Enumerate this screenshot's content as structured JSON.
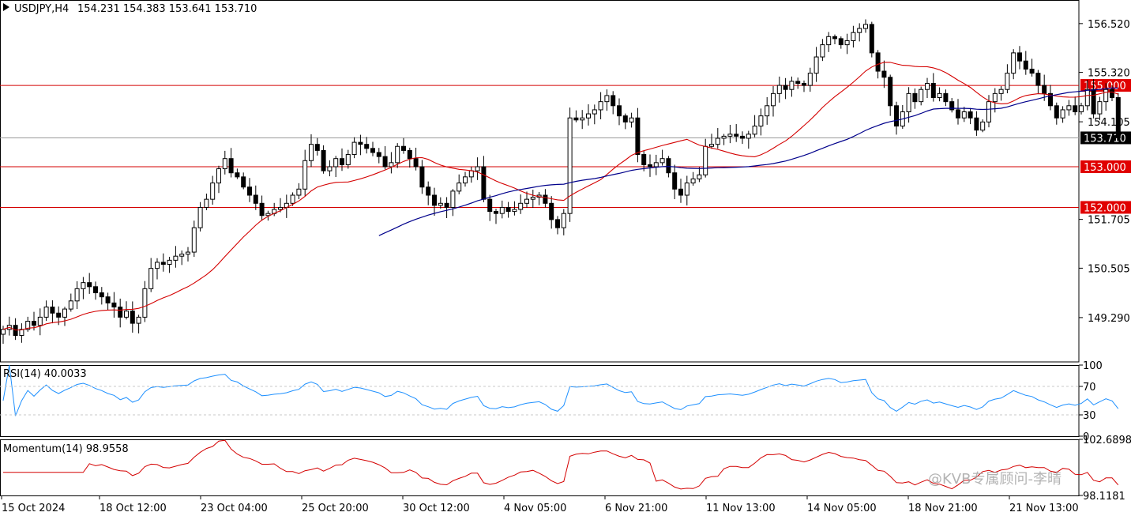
{
  "window": {
    "symbol_label": "USDJPY,H4",
    "ohlc_label": "154.231 154.383 153.641 153.710"
  },
  "colors": {
    "background": "#ffffff",
    "axis": "#000000",
    "grid": "#c8c8c8",
    "level_line": "#d40000",
    "ma_fast": "#d40000",
    "ma_slow": "#00008b",
    "rsi_line": "#1e90ff",
    "momentum_line": "#d40000",
    "current_price_line": "#9a9a9a",
    "price_tag_bg": "#000000",
    "level_tag_bg": "#e00000",
    "tag_text": "#ffffff"
  },
  "chart_data": [
    {
      "type": "candlestick",
      "title": "USDJPY,H4",
      "ylim": [
        148.2,
        157.1
      ],
      "ytick_labels": [
        "156.520",
        "155.320",
        "154.105",
        "151.705",
        "150.505",
        "149.290"
      ],
      "ytick_values": [
        156.52,
        155.32,
        154.105,
        151.705,
        150.505,
        149.29
      ],
      "xtick_labels": [
        "15 Oct 2024",
        "18 Oct 12:00",
        "23 Oct 04:00",
        "25 Oct 20:00",
        "30 Oct 12:00",
        "4 Nov 05:00",
        "6 Nov 21:00",
        "11 Nov 13:00",
        "14 Nov 05:00",
        "18 Nov 21:00",
        "21 Nov 13:00"
      ],
      "last_price": 153.71,
      "last_price_label": "153.710",
      "horizontal_levels": [
        {
          "value": 155.0,
          "label": "155.000"
        },
        {
          "value": 153.0,
          "label": "153.000"
        },
        {
          "value": 152.0,
          "label": "152.000"
        }
      ],
      "candles": [
        149.0,
        149.1,
        148.85,
        149.0,
        149.2,
        149.1,
        149.3,
        149.55,
        149.4,
        149.3,
        149.5,
        149.7,
        150.0,
        150.15,
        150.05,
        149.9,
        149.8,
        149.65,
        149.55,
        149.3,
        149.45,
        149.15,
        149.3,
        150.0,
        150.5,
        150.65,
        150.6,
        150.7,
        150.8,
        150.85,
        150.9,
        151.5,
        152.0,
        152.2,
        152.6,
        152.95,
        153.2,
        152.85,
        152.75,
        152.5,
        152.3,
        152.1,
        151.8,
        151.85,
        151.95,
        152.0,
        152.1,
        152.3,
        152.45,
        153.15,
        153.55,
        153.4,
        152.9,
        153.0,
        153.2,
        153.05,
        153.3,
        153.6,
        153.55,
        153.45,
        153.35,
        153.25,
        153.0,
        153.1,
        153.5,
        153.4,
        153.2,
        153.0,
        152.5,
        152.3,
        152.05,
        152.1,
        152.0,
        152.4,
        152.6,
        152.75,
        152.9,
        153.0,
        152.2,
        151.9,
        151.85,
        152.0,
        151.9,
        151.95,
        152.1,
        152.2,
        152.25,
        152.3,
        152.1,
        151.7,
        151.5,
        151.85,
        154.2,
        154.15,
        154.2,
        154.3,
        154.4,
        154.6,
        154.75,
        154.5,
        154.25,
        154.1,
        154.2,
        153.3,
        153.05,
        153.0,
        153.1,
        153.2,
        152.85,
        152.45,
        152.3,
        152.6,
        152.7,
        152.8,
        153.5,
        153.55,
        153.7,
        153.75,
        153.8,
        153.75,
        153.7,
        153.8,
        154.0,
        154.25,
        154.5,
        154.8,
        155.0,
        154.9,
        155.1,
        155.05,
        155.0,
        155.3,
        155.7,
        156.0,
        156.2,
        156.15,
        156.0,
        156.1,
        156.3,
        156.4,
        156.5,
        155.8,
        155.35,
        155.2,
        154.5,
        154.0,
        154.35,
        154.8,
        154.6,
        154.9,
        155.05,
        154.7,
        154.8,
        154.6,
        154.4,
        154.2,
        154.35,
        154.2,
        153.9,
        154.1,
        154.6,
        154.8,
        154.9,
        155.3,
        155.8,
        155.6,
        155.4,
        155.3,
        155.0,
        154.8,
        154.5,
        154.2,
        154.4,
        154.5,
        154.35,
        154.5,
        154.9,
        154.3,
        154.6,
        154.9,
        154.7,
        153.71
      ]
    },
    {
      "type": "line",
      "title": "RSI(14) 40.0033",
      "ylim": [
        0,
        100
      ],
      "ytick_labels": [
        "100",
        "70",
        "30",
        "0"
      ],
      "ytick_values": [
        100,
        70,
        30,
        0
      ],
      "levels": [
        70,
        30
      ],
      "current": 40.0033
    },
    {
      "type": "line",
      "title": "Momentum(14) 98.9558",
      "ylim": [
        98.1181,
        102.6898
      ],
      "ytick_labels": [
        "102.6898",
        "98.1181"
      ],
      "ytick_values": [
        102.6898,
        98.1181
      ],
      "current": 98.9558
    }
  ],
  "watermark": {
    "text": "@KVB专属顾问-李晴"
  }
}
